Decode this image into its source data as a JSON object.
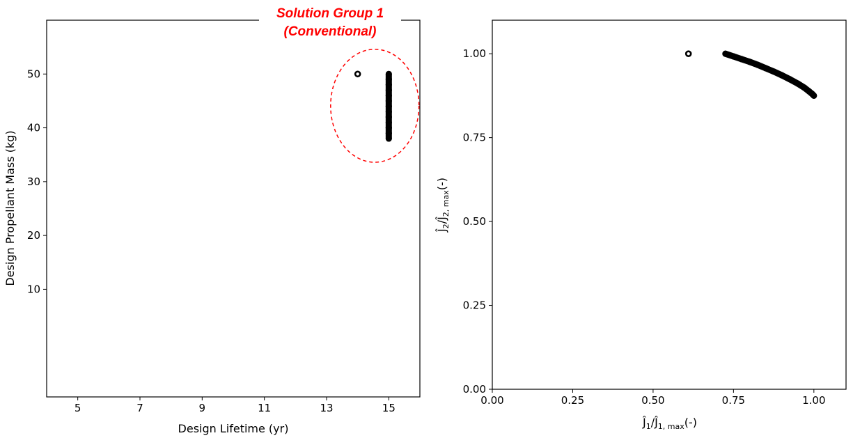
{
  "chart_data": [
    {
      "type": "scatter",
      "xlabel": "Design Lifetime (yr)",
      "ylabel": "Design Propellant Mass (kg)",
      "xlim": [
        4,
        16
      ],
      "ylim": [
        -10,
        60
      ],
      "xticks": [
        5,
        7,
        9,
        11,
        13,
        15
      ],
      "yticks": [
        10,
        20,
        30,
        40,
        50
      ],
      "grid": false,
      "annotation": {
        "lines": [
          "Solution Group 1",
          "(Conventional)"
        ],
        "color": "#ff0000",
        "ellipse_center": [
          14.55,
          44.1
        ],
        "ellipse_radius": [
          1.42,
          10.5
        ]
      },
      "series": [
        {
          "marker_color": "#000000",
          "points": [
            {
              "x": 14.0,
              "y": 50.0
            },
            {
              "x": 15.0,
              "y": 38.0
            },
            {
              "x": 15.0,
              "y": 39.0
            },
            {
              "x": 15.0,
              "y": 40.0
            },
            {
              "x": 15.0,
              "y": 41.0
            },
            {
              "x": 15.0,
              "y": 42.0
            },
            {
              "x": 15.0,
              "y": 43.0
            },
            {
              "x": 15.0,
              "y": 44.0
            },
            {
              "x": 15.0,
              "y": 45.0
            },
            {
              "x": 15.0,
              "y": 46.0
            },
            {
              "x": 15.0,
              "y": 47.0
            },
            {
              "x": 15.0,
              "y": 48.0
            },
            {
              "x": 15.0,
              "y": 49.0
            },
            {
              "x": 15.0,
              "y": 50.0
            }
          ]
        }
      ]
    },
    {
      "type": "scatter",
      "xlabel": "Ĵ1/Ĵ1, max(-)",
      "ylabel": "Ĵ2/Ĵ2, max(-)",
      "xlim": [
        0.0,
        1.1
      ],
      "ylim": [
        0.0,
        1.1
      ],
      "xticks": [
        "0.00",
        "0.25",
        "0.50",
        "0.75",
        "1.00"
      ],
      "yticks": [
        "0.00",
        "0.25",
        "0.50",
        "0.75",
        "1.00"
      ],
      "grid": false,
      "series": [
        {
          "marker_color": "#000000",
          "points": [
            {
              "x": 0.61,
              "y": 1.0
            },
            {
              "x": 0.725,
              "y": 1.0
            },
            {
              "x": 0.75,
              "y": 0.992
            },
            {
              "x": 0.775,
              "y": 0.984
            },
            {
              "x": 0.8,
              "y": 0.976
            },
            {
              "x": 0.825,
              "y": 0.967
            },
            {
              "x": 0.85,
              "y": 0.957
            },
            {
              "x": 0.875,
              "y": 0.947
            },
            {
              "x": 0.9,
              "y": 0.936
            },
            {
              "x": 0.925,
              "y": 0.924
            },
            {
              "x": 0.95,
              "y": 0.911
            },
            {
              "x": 0.97,
              "y": 0.899
            },
            {
              "x": 0.985,
              "y": 0.888
            },
            {
              "x": 0.995,
              "y": 0.88
            },
            {
              "x": 1.0,
              "y": 0.875
            }
          ]
        }
      ]
    }
  ]
}
